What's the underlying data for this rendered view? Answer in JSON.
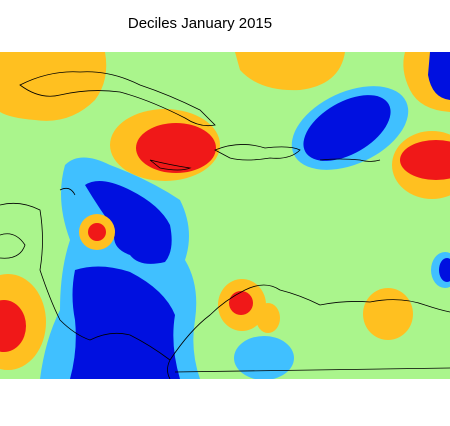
{
  "title": "Deciles January 2015"
}
